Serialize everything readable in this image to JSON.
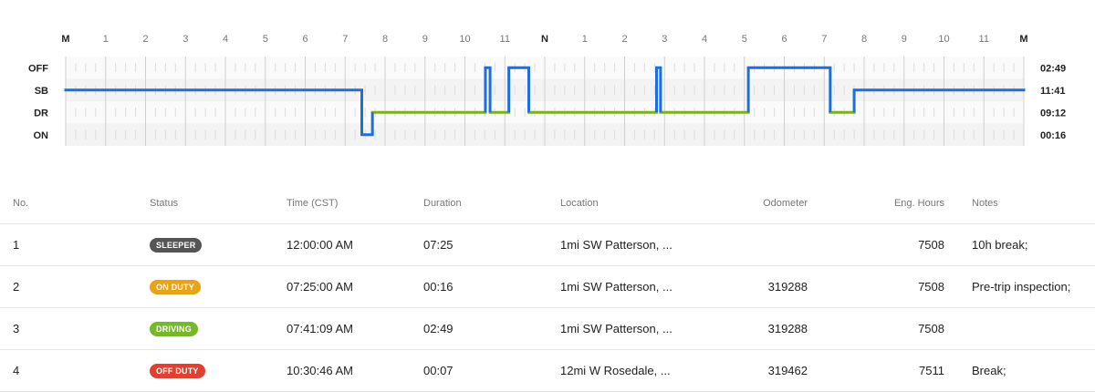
{
  "chart_data": {
    "type": "line",
    "title": "",
    "hour_labels": [
      "M",
      "1",
      "2",
      "3",
      "4",
      "5",
      "6",
      "7",
      "8",
      "9",
      "10",
      "11",
      "N",
      "1",
      "2",
      "3",
      "4",
      "5",
      "6",
      "7",
      "8",
      "9",
      "10",
      "11",
      "M"
    ],
    "status_rows": [
      "OFF",
      "SB",
      "DR",
      "ON"
    ],
    "totals": [
      "02:49",
      "11:41",
      "09:12",
      "00:16"
    ],
    "line_segments": [
      {
        "start": 0.0,
        "end": 7.417,
        "status": "SB",
        "color": "#1e6fd9"
      },
      {
        "start": 7.417,
        "end": 7.683,
        "status": "ON",
        "color": "#1e6fd9"
      },
      {
        "start": 7.683,
        "end": 10.513,
        "status": "DR",
        "color": "#7ab317"
      },
      {
        "start": 10.513,
        "end": 10.63,
        "status": "OFF",
        "color": "#1e6fd9"
      },
      {
        "start": 10.63,
        "end": 11.1,
        "status": "DR",
        "color": "#7ab317"
      },
      {
        "start": 11.1,
        "end": 11.6,
        "status": "OFF",
        "color": "#1e6fd9"
      },
      {
        "start": 11.6,
        "end": 14.8,
        "status": "DR",
        "color": "#7ab317"
      },
      {
        "start": 14.8,
        "end": 14.9,
        "status": "OFF",
        "color": "#1e6fd9"
      },
      {
        "start": 14.9,
        "end": 17.1,
        "status": "DR",
        "color": "#7ab317"
      },
      {
        "start": 17.1,
        "end": 19.15,
        "status": "OFF",
        "color": "#1e6fd9"
      },
      {
        "start": 19.15,
        "end": 19.75,
        "status": "DR",
        "color": "#7ab317"
      },
      {
        "start": 19.75,
        "end": 24.0,
        "status": "SB",
        "color": "#1e6fd9"
      }
    ]
  },
  "table": {
    "headers": {
      "no": "No.",
      "status": "Status",
      "time": "Time (CST)",
      "duration": "Duration",
      "location": "Location",
      "odometer": "Odometer",
      "eng_hours": "Eng. Hours",
      "notes": "Notes"
    },
    "rows": [
      {
        "no": "1",
        "status": "SLEEPER",
        "status_color": "#555555",
        "time": "12:00:00 AM",
        "duration": "07:25",
        "location": "1mi SW Patterson, ...",
        "odometer": "",
        "eng_hours": "7508",
        "notes": "10h break;"
      },
      {
        "no": "2",
        "status": "ON DUTY",
        "status_color": "#e8a317",
        "time": "07:25:00 AM",
        "duration": "00:16",
        "location": "1mi SW Patterson, ...",
        "odometer": "319288",
        "eng_hours": "7508",
        "notes": "Pre-trip inspection;"
      },
      {
        "no": "3",
        "status": "DRIVING",
        "status_color": "#76b82a",
        "time": "07:41:09 AM",
        "duration": "02:49",
        "location": "1mi SW Patterson, ...",
        "odometer": "319288",
        "eng_hours": "7508",
        "notes": ""
      },
      {
        "no": "4",
        "status": "OFF DUTY",
        "status_color": "#e0402f",
        "time": "10:30:46 AM",
        "duration": "00:07",
        "location": "12mi W Rosedale, ...",
        "odometer": "319462",
        "eng_hours": "7511",
        "notes": "Break;"
      }
    ]
  }
}
